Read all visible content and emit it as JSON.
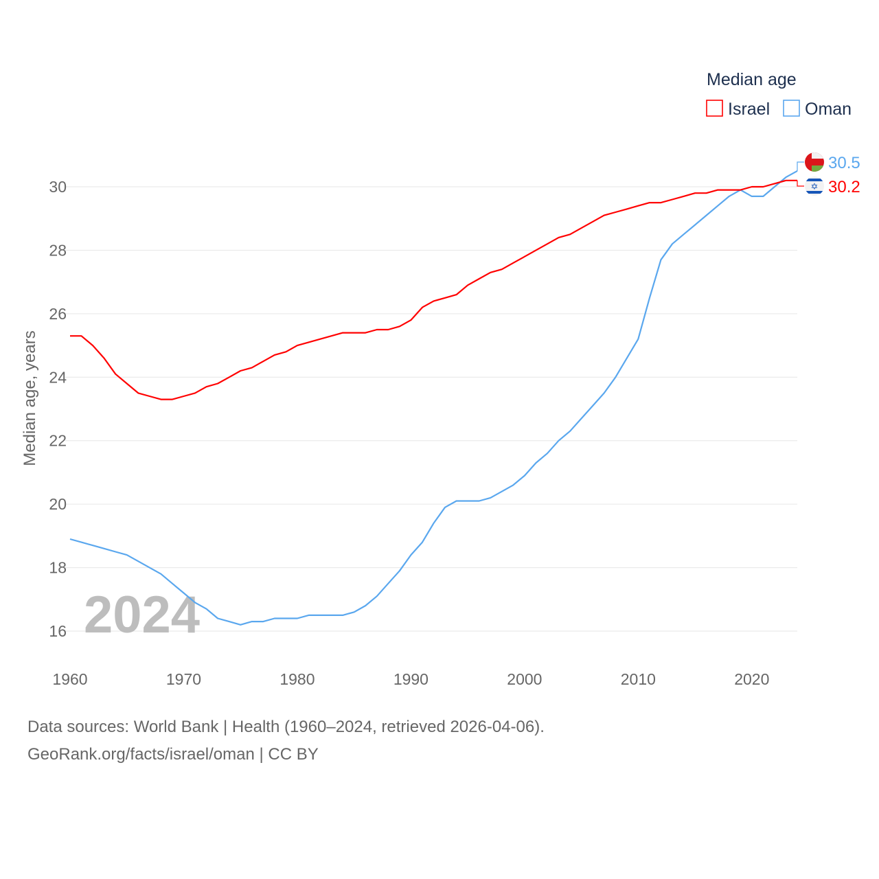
{
  "chart_data": {
    "type": "line",
    "title": "",
    "legend_title": "Median age",
    "legend_placement": "top-right",
    "xlabel": "",
    "ylabel": "Median age, years",
    "xlim": [
      1960,
      2024
    ],
    "ylim": [
      15,
      31
    ],
    "x_ticks": [
      1960,
      1970,
      1980,
      1990,
      2000,
      2010,
      2020
    ],
    "y_ticks": [
      16,
      18,
      20,
      22,
      24,
      26,
      28,
      30
    ],
    "grid": true,
    "watermark_year": "2024",
    "x_start": 1960,
    "series": [
      {
        "name": "Israel",
        "color": "#ff0000",
        "end_label": "30.2",
        "flag": "israel-flag",
        "values": [
          25.3,
          25.3,
          25.0,
          24.6,
          24.1,
          23.8,
          23.5,
          23.4,
          23.3,
          23.3,
          23.4,
          23.5,
          23.7,
          23.8,
          24.0,
          24.2,
          24.3,
          24.5,
          24.7,
          24.8,
          25.0,
          25.1,
          25.2,
          25.3,
          25.4,
          25.4,
          25.4,
          25.5,
          25.5,
          25.6,
          25.8,
          26.2,
          26.4,
          26.5,
          26.6,
          26.9,
          27.1,
          27.3,
          27.4,
          27.6,
          27.8,
          28.0,
          28.2,
          28.4,
          28.5,
          28.7,
          28.9,
          29.1,
          29.2,
          29.3,
          29.4,
          29.5,
          29.5,
          29.6,
          29.7,
          29.8,
          29.8,
          29.9,
          29.9,
          29.9,
          30.0,
          30.0,
          30.1,
          30.2,
          30.2
        ]
      },
      {
        "name": "Oman",
        "color": "#5aa7ee",
        "end_label": "30.5",
        "flag": "oman-flag",
        "values": [
          18.9,
          18.8,
          18.7,
          18.6,
          18.5,
          18.4,
          18.2,
          18.0,
          17.8,
          17.5,
          17.2,
          16.9,
          16.7,
          16.4,
          16.3,
          16.2,
          16.3,
          16.3,
          16.4,
          16.4,
          16.4,
          16.5,
          16.5,
          16.5,
          16.5,
          16.6,
          16.8,
          17.1,
          17.5,
          17.9,
          18.4,
          18.8,
          19.4,
          19.9,
          20.1,
          20.1,
          20.1,
          20.2,
          20.4,
          20.6,
          20.9,
          21.3,
          21.6,
          22.0,
          22.3,
          22.7,
          23.1,
          23.5,
          24.0,
          24.6,
          25.2,
          26.5,
          27.7,
          28.2,
          28.5,
          28.8,
          29.1,
          29.4,
          29.7,
          29.9,
          29.7,
          29.7,
          30.0,
          30.3,
          30.5
        ]
      }
    ]
  },
  "footer": {
    "line1": "Data sources: World Bank | Health (1960–2024, retrieved 2026-04-06).",
    "line2": "GeoRank.org/facts/israel/oman | CC BY"
  }
}
